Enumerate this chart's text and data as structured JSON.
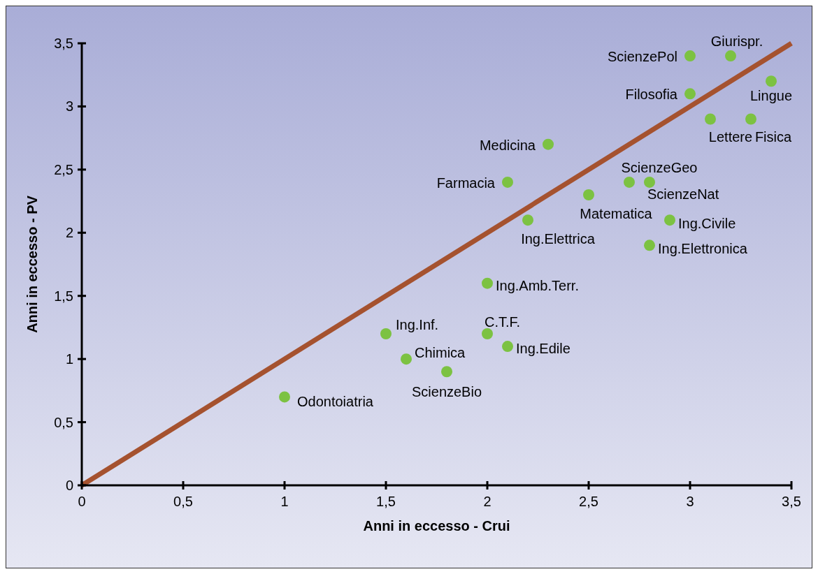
{
  "chart_data": {
    "type": "scatter",
    "xlabel": "Anni in eccesso - Crui",
    "ylabel": "Anni in eccesso - PV",
    "xlim": [
      0,
      3.5
    ],
    "ylim": [
      0,
      3.5
    ],
    "xticks": [
      0,
      {
        "value": 0.5,
        "label": "0,5"
      },
      1,
      {
        "value": 1.5,
        "label": "1,5"
      },
      2,
      {
        "value": 2.5,
        "label": "2,5"
      },
      3,
      {
        "value": 3.5,
        "label": "3,5"
      }
    ],
    "yticks": [
      0,
      {
        "value": 0.5,
        "label": "0,5"
      },
      1,
      {
        "value": 1.5,
        "label": "1,5"
      },
      2,
      {
        "value": 2.5,
        "label": "2,5"
      },
      3,
      {
        "value": 3.5,
        "label": "3,5"
      }
    ],
    "grid": false,
    "marker": "circle",
    "series": [
      {
        "type": "line",
        "marker": "none",
        "color": "#a5522f",
        "x": [
          0,
          3.5
        ],
        "values": [
          0,
          3.5
        ]
      },
      {
        "color": "#7cc242",
        "x": [
          1,
          1.5,
          1.6,
          1.8,
          2,
          2.1,
          2,
          2.2,
          2.1,
          2.3,
          2.5,
          2.7,
          2.8,
          2.9,
          2.8,
          3,
          3,
          3.2,
          3.4,
          3.1,
          3.3
        ],
        "values": [
          0.7,
          1.2,
          1,
          0.9,
          1.2,
          1.1,
          1.6,
          2.1,
          2.4,
          2.7,
          2.3,
          2.4,
          2.4,
          2.1,
          1.9,
          3.1,
          3.4,
          3.4,
          3.2,
          2.9,
          2.9
        ]
      }
    ],
    "annotations": [
      {
        "text": "Odontoiatria",
        "x": 1,
        "y": 0.7
      },
      {
        "text": "Ing.Inf.",
        "x": 1.5,
        "y": 1.2
      },
      {
        "text": "Chimica",
        "x": 1.6,
        "y": 1
      },
      {
        "text": "ScienzeBio",
        "x": 1.8,
        "y": 0.9
      },
      {
        "text": "C.T.F.",
        "x": 2,
        "y": 1.2
      },
      {
        "text": "Ing.Edile",
        "x": 2.1,
        "y": 1.1
      },
      {
        "text": "Ing.Amb.Terr.",
        "x": 2,
        "y": 1.6
      },
      {
        "text": "Ing.Elettrica",
        "x": 2.2,
        "y": 2.1
      },
      {
        "text": "Farmacia",
        "x": 2.1,
        "y": 2.4
      },
      {
        "text": "Medicina",
        "x": 2.3,
        "y": 2.7
      },
      {
        "text": "Matematica",
        "x": 2.5,
        "y": 2.3
      },
      {
        "text": "ScienzeGeo",
        "x": 2.7,
        "y": 2.4
      },
      {
        "text": "ScienzeNat",
        "x": 2.8,
        "y": 2.4
      },
      {
        "text": "Ing.Civile",
        "x": 2.9,
        "y": 2.1
      },
      {
        "text": "Ing.Elettronica",
        "x": 2.8,
        "y": 1.9
      },
      {
        "text": "Filosofia",
        "x": 3,
        "y": 3.1
      },
      {
        "text": "ScienzePol",
        "x": 3,
        "y": 3.4
      },
      {
        "text": "Giurispr.",
        "x": 3.2,
        "y": 3.4
      },
      {
        "text": "Lingue",
        "x": 3.4,
        "y": 3.2
      },
      {
        "text": "Lettere",
        "x": 3.1,
        "y": 2.9
      },
      {
        "text": "Fisica",
        "x": 3.3,
        "y": 2.9
      }
    ]
  }
}
